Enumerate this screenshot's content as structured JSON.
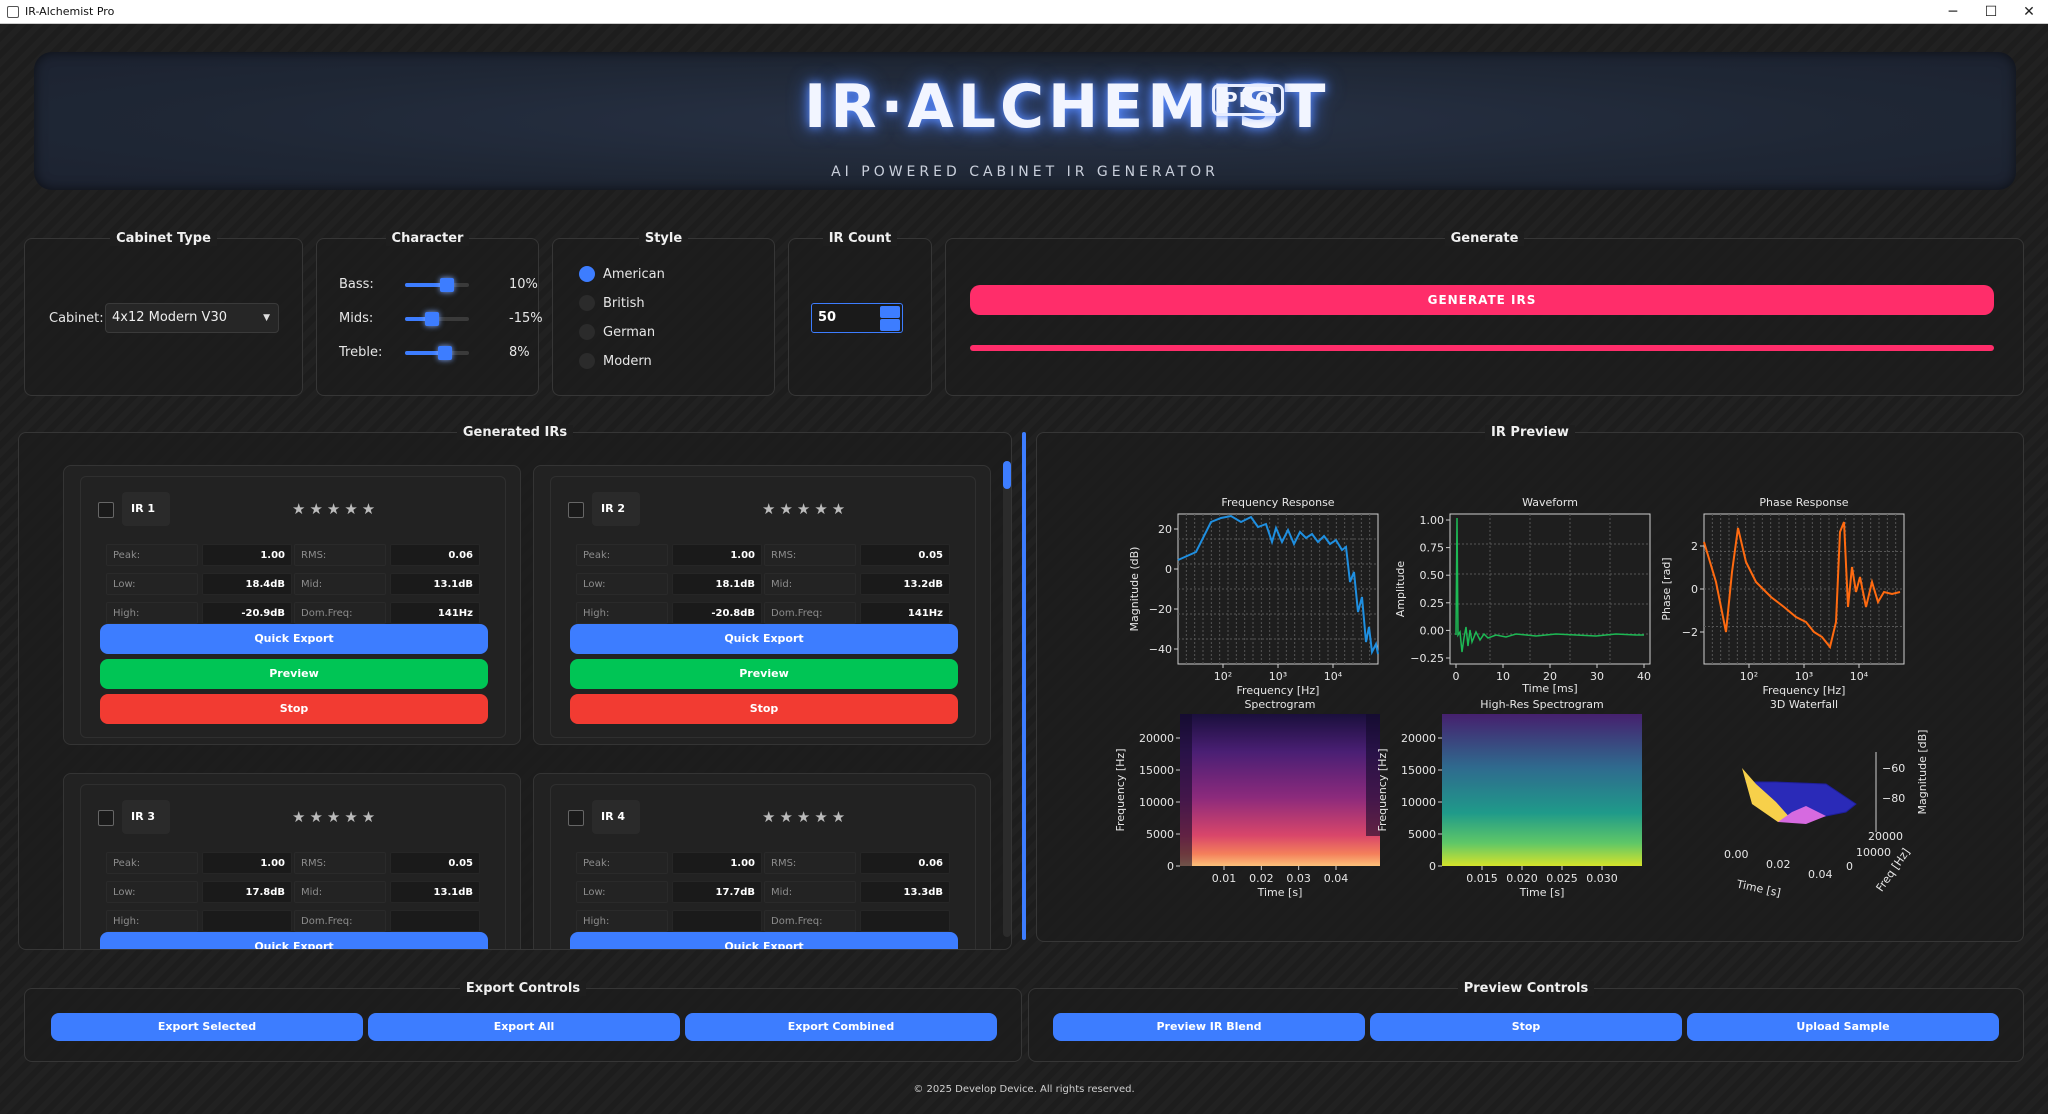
{
  "window": {
    "title": "IR-Alchemist Pro",
    "controls": [
      "─",
      "☐",
      "✕"
    ]
  },
  "header": {
    "title": "IR·ALCHEMIST",
    "badge": "PRO",
    "subtitle": "AI POWERED CABINET IR GENERATOR"
  },
  "cabinet": {
    "panel_title": "Cabinet Type",
    "label": "Cabinet:",
    "selected": "4x12 Modern V30"
  },
  "character": {
    "panel_title": "Character",
    "sliders": [
      {
        "label": "Bass:",
        "value": "10%",
        "level": 0.65
      },
      {
        "label": "Mids:",
        "value": "-15%",
        "level": 0.42
      },
      {
        "label": "Treble:",
        "value": "8%",
        "level": 0.62
      }
    ]
  },
  "style": {
    "panel_title": "Style",
    "options": [
      {
        "label": "American",
        "selected": true
      },
      {
        "label": "British",
        "selected": false
      },
      {
        "label": "German",
        "selected": false
      },
      {
        "label": "Modern",
        "selected": false
      }
    ]
  },
  "ir_count": {
    "panel_title": "IR Count",
    "value": "50"
  },
  "generate": {
    "panel_title": "Generate",
    "button": "GENERATE IRS",
    "progress": 1.0
  },
  "generated": {
    "panel_title": "Generated IRs",
    "labels": {
      "peak": "Peak:",
      "rms": "RMS:",
      "low": "Low:",
      "mid": "Mid:",
      "high": "High:",
      "domfreq": "Dom.Freq:"
    },
    "stars": "★★★★★",
    "buttons": {
      "quick_export": "Quick Export",
      "preview": "Preview",
      "stop": "Stop"
    },
    "cards": [
      {
        "name": "IR 1",
        "peak": "1.00",
        "rms": "0.06",
        "low": "18.4dB",
        "mid": "13.1dB",
        "high": "-20.9dB",
        "domfreq": "141Hz"
      },
      {
        "name": "IR 2",
        "peak": "1.00",
        "rms": "0.05",
        "low": "18.1dB",
        "mid": "13.2dB",
        "high": "-20.8dB",
        "domfreq": "141Hz"
      },
      {
        "name": "IR 3",
        "peak": "1.00",
        "rms": "0.05",
        "low": "17.8dB",
        "mid": "13.1dB",
        "high": "",
        "domfreq": ""
      },
      {
        "name": "IR 4",
        "peak": "1.00",
        "rms": "0.06",
        "low": "17.7dB",
        "mid": "13.3dB",
        "high": "",
        "domfreq": ""
      }
    ]
  },
  "preview": {
    "panel_title": "IR Preview",
    "freq": {
      "title": "Frequency Response",
      "xlabel": "Frequency [Hz]",
      "ylabel": "Magnitude (dB)",
      "yticks": [
        "20",
        "0",
        "−20",
        "−40"
      ],
      "xticks": [
        "10²",
        "10³",
        "10⁴"
      ]
    },
    "wave": {
      "title": "Waveform",
      "xlabel": "Time [ms]",
      "ylabel": "Amplitude",
      "yticks": [
        "1.00",
        "0.75",
        "0.50",
        "0.25",
        "0.00",
        "−0.25"
      ],
      "xticks": [
        "0",
        "10",
        "20",
        "30",
        "40"
      ]
    },
    "phase": {
      "title": "Phase Response",
      "xlabel": "Frequency [Hz]",
      "ylabel": "Phase [rad]",
      "yticks": [
        "2",
        "0",
        "−2"
      ],
      "xticks": [
        "10²",
        "10³",
        "10⁴"
      ]
    },
    "spec": {
      "title": "Spectrogram",
      "xlabel": "Time [s]",
      "ylabel": "Frequency [Hz]",
      "yticks": [
        "20000",
        "15000",
        "10000",
        "5000",
        "0"
      ],
      "xticks": [
        "0.01",
        "0.02",
        "0.03",
        "0.04"
      ]
    },
    "hires": {
      "title": "High-Res Spectrogram",
      "xlabel": "Time [s]",
      "ylabel": "Frequency [Hz]",
      "yticks": [
        "20000",
        "15000",
        "10000",
        "5000",
        "0"
      ],
      "xticks": [
        "0.015",
        "0.020",
        "0.025",
        "0.030"
      ]
    },
    "waterfall": {
      "title": "3D Waterfall",
      "xlabel": "Time [s]",
      "ylabel": "Freq [Hz]",
      "zlabel": "Magnitude [dB]",
      "zticks": [
        "−60",
        "−80"
      ],
      "yticks": [
        "20000",
        "10000",
        "0"
      ],
      "xticks": [
        "0.00",
        "0.02",
        "0.04"
      ]
    }
  },
  "export_controls": {
    "panel_title": "Export Controls",
    "buttons": [
      "Export Selected",
      "Export All",
      "Export Combined"
    ]
  },
  "preview_controls": {
    "panel_title": "Preview Controls",
    "buttons": [
      "Preview IR Blend",
      "Stop",
      "Upload Sample"
    ]
  },
  "footer": "© 2025 Develop Device. All rights reserved.",
  "colors": {
    "accent": "#3d7dff",
    "generate": "#ff2d6a",
    "preview": "#00c555",
    "stop": "#f23b32",
    "freq_line": "#1f8fe0",
    "wave_line": "#1db954",
    "phase_line": "#ff6a10"
  }
}
